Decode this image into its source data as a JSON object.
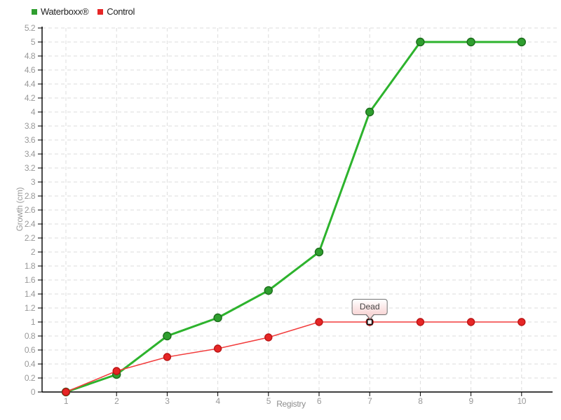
{
  "legend": {
    "items": [
      {
        "label": "Waterboxx®",
        "color": "#2f9e2f"
      },
      {
        "label": "Control",
        "color": "#e62626"
      }
    ]
  },
  "chart_data": {
    "type": "line",
    "title": "",
    "xlabel": "Registry",
    "ylabel": "Growth (cm)",
    "x": [
      1,
      2,
      3,
      4,
      5,
      6,
      7,
      8,
      9,
      10
    ],
    "xlim": [
      1,
      10
    ],
    "ylim": [
      0,
      5.2
    ],
    "ytick_step": 0.2,
    "grid": true,
    "grid_style": "dashed",
    "legend_position": "top-left",
    "colors": {
      "grid": "#dcdcdc",
      "axis": "#000000",
      "tick_label": "#999999",
      "axis_title": "#8e8e8e"
    },
    "series": [
      {
        "name": "Waterboxx®",
        "line_color": "#2db32d",
        "line_width": 3,
        "marker": "circle",
        "marker_radius": 5.5,
        "marker_fill": "#2f9e2f",
        "marker_stroke": "#1b6e1b",
        "values": [
          0,
          0.25,
          0.8,
          1.06,
          1.45,
          2,
          4,
          5,
          5,
          5
        ]
      },
      {
        "name": "Control",
        "line_color": "#f23d3d",
        "line_width": 1.5,
        "marker": "circle",
        "marker_radius": 5,
        "marker_fill": "#e62626",
        "marker_stroke": "#bb1515",
        "values": [
          0,
          0.3,
          0.5,
          0.62,
          0.78,
          1,
          1,
          1,
          1,
          1
        ]
      }
    ],
    "annotations": [
      {
        "text": "Dead",
        "series": "Control",
        "x": 7,
        "y": 1,
        "marker": "open-square"
      }
    ]
  }
}
